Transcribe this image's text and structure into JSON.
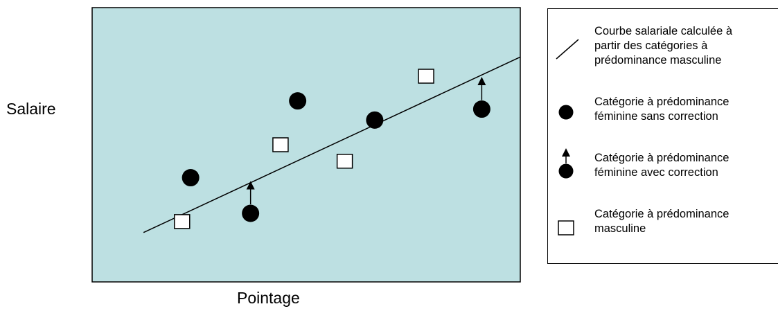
{
  "chart_data": {
    "type": "scatter",
    "title": "",
    "xlabel": "Pointage",
    "ylabel": "Salaire",
    "grid": false,
    "plot_background": "#bde0e2",
    "legend_placement": "right",
    "series": [
      {
        "name": "Courbe salariale calculée à partir des catégories à prédominance masculine",
        "kind": "line",
        "x": [
          0.12,
          1.0
        ],
        "y": [
          0.18,
          0.82
        ]
      },
      {
        "name": "Catégorie à prédominance féminine sans correction",
        "kind": "filled-circle",
        "x": [
          0.23,
          0.48,
          0.66
        ],
        "y": [
          0.38,
          0.66,
          0.59
        ]
      },
      {
        "name": "Catégorie à prédominance féminine avec correction",
        "kind": "filled-circle-with-arrow",
        "x": [
          0.37,
          0.91
        ],
        "y": [
          0.25,
          0.63
        ],
        "corrected_y": [
          0.37,
          0.75
        ]
      },
      {
        "name": "Catégorie à prédominance masculine",
        "kind": "open-square",
        "x": [
          0.21,
          0.44,
          0.59,
          0.78
        ],
        "y": [
          0.22,
          0.5,
          0.44,
          0.75
        ]
      }
    ]
  },
  "legend": {
    "items": [
      {
        "text": "Courbe salariale calculée à\npartir des catégories à\nprédominance masculine",
        "icon": "line-icon"
      },
      {
        "text": "Catégorie à prédominance\nféminine sans correction",
        "icon": "filled-circle-icon"
      },
      {
        "text": "Catégorie à prédominance\nféminine avec correction",
        "icon": "circle-arrow-icon"
      },
      {
        "text": "Catégorie à prédominance\nmasculine",
        "icon": "open-square-icon"
      }
    ]
  }
}
